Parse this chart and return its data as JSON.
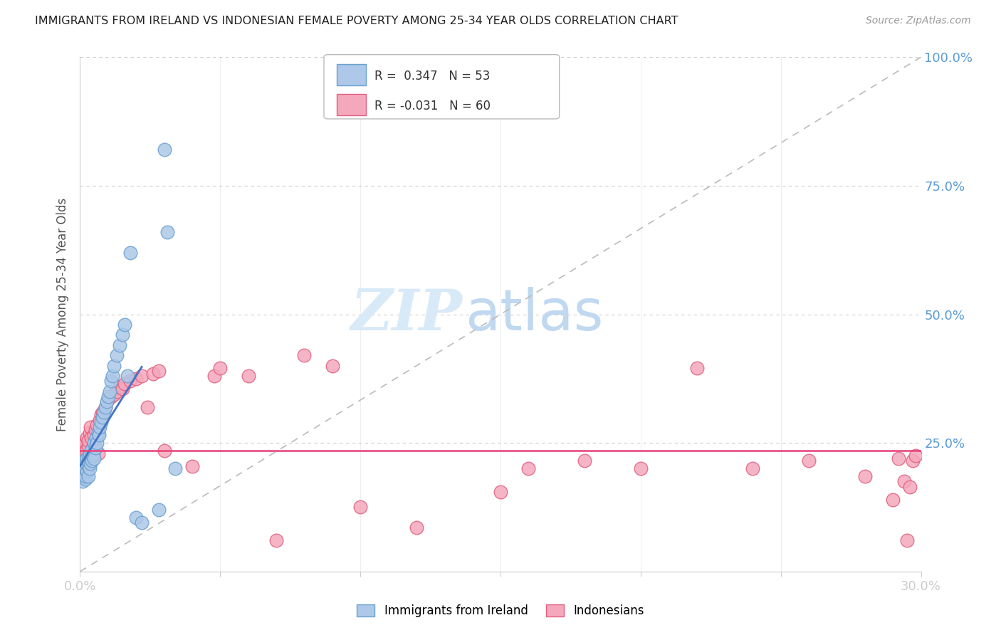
{
  "title": "IMMIGRANTS FROM IRELAND VS INDONESIAN FEMALE POVERTY AMONG 25-34 YEAR OLDS CORRELATION CHART",
  "source": "Source: ZipAtlas.com",
  "ylabel": "Female Poverty Among 25-34 Year Olds",
  "ylim": [
    0,
    1.0
  ],
  "xlim": [
    0,
    0.3
  ],
  "ireland_color": "#adc8e8",
  "indonesia_color": "#f5a8bc",
  "ireland_edge": "#6aa0d0",
  "indonesia_edge": "#e06080",
  "ireland_line_color": "#4472c4",
  "indonesia_line_color": "#e8407a",
  "diag_color": "#bbbbbb",
  "legend_ireland_r": "0.347",
  "legend_ireland_n": "53",
  "legend_indonesia_r": "-0.031",
  "legend_indonesia_n": "60",
  "background_color": "#ffffff",
  "grid_color": "#cccccc",
  "right_tick_color": "#5b9bd5",
  "watermark_zip_color": "#d8eaf8",
  "watermark_atlas_color": "#c0d8f0",
  "ireland_x": [
    0.0008,
    0.001,
    0.0012,
    0.0015,
    0.0015,
    0.0018,
    0.002,
    0.002,
    0.0022,
    0.0025,
    0.0025,
    0.0028,
    0.003,
    0.003,
    0.0032,
    0.0035,
    0.0035,
    0.0038,
    0.004,
    0.004,
    0.0042,
    0.0045,
    0.0048,
    0.005,
    0.005,
    0.0055,
    0.0058,
    0.006,
    0.0065,
    0.0068,
    0.007,
    0.0075,
    0.008,
    0.0085,
    0.009,
    0.0095,
    0.01,
    0.0105,
    0.011,
    0.0115,
    0.012,
    0.013,
    0.014,
    0.015,
    0.016,
    0.017,
    0.018,
    0.02,
    0.022,
    0.028,
    0.03,
    0.031,
    0.034
  ],
  "ireland_y": [
    0.185,
    0.175,
    0.19,
    0.2,
    0.215,
    0.18,
    0.185,
    0.2,
    0.21,
    0.195,
    0.22,
    0.205,
    0.185,
    0.215,
    0.225,
    0.2,
    0.23,
    0.21,
    0.22,
    0.235,
    0.215,
    0.225,
    0.23,
    0.22,
    0.25,
    0.24,
    0.26,
    0.25,
    0.27,
    0.265,
    0.28,
    0.29,
    0.3,
    0.31,
    0.32,
    0.33,
    0.34,
    0.35,
    0.37,
    0.38,
    0.4,
    0.42,
    0.44,
    0.46,
    0.48,
    0.38,
    0.62,
    0.105,
    0.095,
    0.12,
    0.82,
    0.66,
    0.2
  ],
  "indonesia_x": [
    0.0008,
    0.001,
    0.0012,
    0.0015,
    0.0018,
    0.002,
    0.0022,
    0.0025,
    0.0028,
    0.003,
    0.0035,
    0.0038,
    0.004,
    0.0045,
    0.005,
    0.0055,
    0.006,
    0.0065,
    0.007,
    0.0075,
    0.008,
    0.009,
    0.01,
    0.011,
    0.012,
    0.013,
    0.014,
    0.015,
    0.016,
    0.018,
    0.02,
    0.022,
    0.024,
    0.026,
    0.028,
    0.03,
    0.04,
    0.048,
    0.05,
    0.06,
    0.07,
    0.08,
    0.09,
    0.1,
    0.12,
    0.15,
    0.16,
    0.18,
    0.2,
    0.22,
    0.24,
    0.26,
    0.28,
    0.29,
    0.292,
    0.294,
    0.295,
    0.296,
    0.297,
    0.298
  ],
  "indonesia_y": [
    0.2,
    0.22,
    0.23,
    0.215,
    0.24,
    0.25,
    0.235,
    0.26,
    0.245,
    0.255,
    0.27,
    0.28,
    0.26,
    0.24,
    0.265,
    0.275,
    0.285,
    0.23,
    0.295,
    0.305,
    0.31,
    0.32,
    0.335,
    0.34,
    0.345,
    0.35,
    0.36,
    0.355,
    0.365,
    0.37,
    0.375,
    0.38,
    0.32,
    0.385,
    0.39,
    0.235,
    0.205,
    0.38,
    0.395,
    0.38,
    0.06,
    0.42,
    0.4,
    0.125,
    0.085,
    0.155,
    0.2,
    0.215,
    0.2,
    0.395,
    0.2,
    0.215,
    0.185,
    0.14,
    0.22,
    0.175,
    0.06,
    0.165,
    0.215,
    0.225
  ]
}
